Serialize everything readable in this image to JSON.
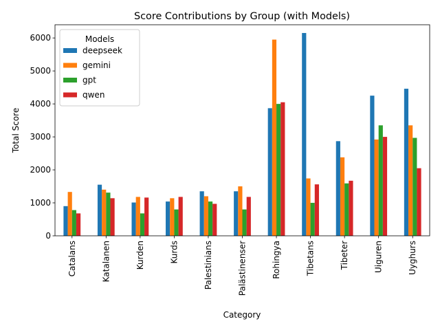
{
  "chart_data": {
    "type": "bar",
    "title": "Score Contributions by Group (with Models)",
    "xlabel": "Category",
    "ylabel": "Total Score",
    "ylim": [
      0,
      6400
    ],
    "yticks": [
      0,
      1000,
      2000,
      3000,
      4000,
      5000,
      6000
    ],
    "ytick_labels": [
      "0",
      "1000",
      "2000",
      "3000",
      "4000",
      "5000",
      "6000"
    ],
    "grid": false,
    "legend": {
      "title": "Models",
      "placement": "top-left"
    },
    "categories": [
      "Catalans",
      "Katalanen",
      "Kurden",
      "Kurds",
      "Palestinians",
      "Palästinenser",
      "Rohingya",
      "Tibetans",
      "Tibeter",
      "Uiguren",
      "Uyghurs"
    ],
    "series": [
      {
        "name": "deepseek",
        "color": "#1f77b4",
        "values": [
          900,
          1550,
          1010,
          1040,
          1350,
          1350,
          3870,
          6150,
          2870,
          4250,
          4460
        ]
      },
      {
        "name": "gemini",
        "color": "#ff7f0e",
        "values": [
          1330,
          1400,
          1180,
          1140,
          1200,
          1500,
          5950,
          1740,
          2380,
          2920,
          3350
        ]
      },
      {
        "name": "gpt",
        "color": "#2ca02c",
        "values": [
          780,
          1310,
          680,
          800,
          1040,
          800,
          4000,
          1000,
          1590,
          3350,
          2970
        ]
      },
      {
        "name": "qwen",
        "color": "#d62728",
        "values": [
          680,
          1140,
          1160,
          1180,
          970,
          1180,
          4050,
          1560,
          1670,
          3000,
          2050
        ]
      }
    ]
  }
}
